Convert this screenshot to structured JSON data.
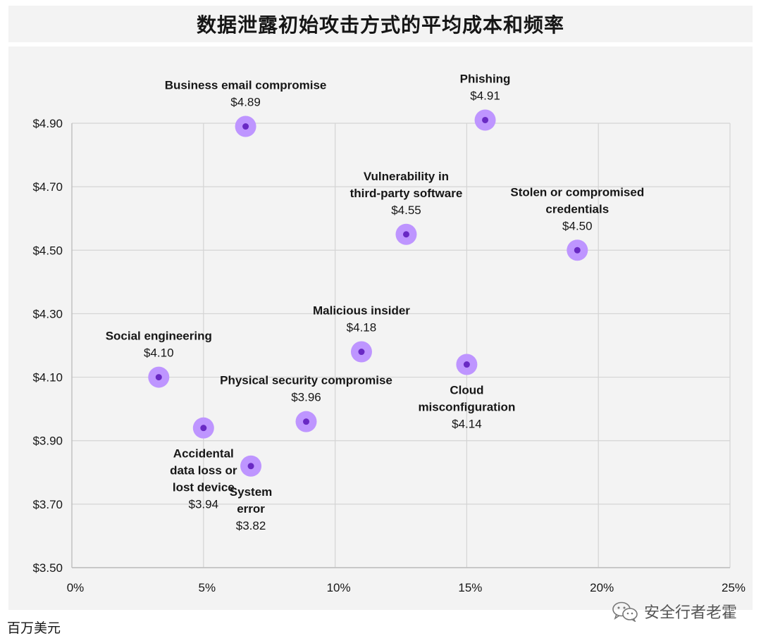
{
  "chart_data": {
    "type": "scatter",
    "title": "数据泄露初始攻击方式的平均成本和频率",
    "unit_note": "百万美元",
    "xlim": [
      0,
      25
    ],
    "ylim": [
      3.5,
      4.9
    ],
    "x_ticks": [
      0,
      5,
      10,
      15,
      20,
      25
    ],
    "x_tick_labels": [
      "0%",
      "5%",
      "10%",
      "15%",
      "20%",
      "25%"
    ],
    "y_ticks": [
      3.5,
      3.7,
      3.9,
      4.1,
      4.3,
      4.5,
      4.7,
      4.9
    ],
    "y_tick_labels": [
      "$3.50",
      "$3.70",
      "$3.90",
      "$4.10",
      "$4.30",
      "$4.50",
      "$4.70",
      "$4.90"
    ],
    "grid": true,
    "marker_color": "#6929c4",
    "halo_color": "#be95ff",
    "points": [
      {
        "name_lines": [
          "Business email compromise"
        ],
        "value_label": "$4.89",
        "x": 6.6,
        "y": 4.89,
        "label_pos": "above"
      },
      {
        "name_lines": [
          "Phishing"
        ],
        "value_label": "$4.91",
        "x": 15.7,
        "y": 4.91,
        "label_pos": "above"
      },
      {
        "name_lines": [
          "Vulnerability in",
          "third-party software"
        ],
        "value_label": "$4.55",
        "x": 12.7,
        "y": 4.55,
        "label_pos": "above"
      },
      {
        "name_lines": [
          "Stolen or compromised",
          "credentials"
        ],
        "value_label": "$4.50",
        "x": 19.2,
        "y": 4.5,
        "label_pos": "above"
      },
      {
        "name_lines": [
          "Malicious insider"
        ],
        "value_label": "$4.18",
        "x": 11.0,
        "y": 4.18,
        "label_pos": "above"
      },
      {
        "name_lines": [
          "Social engineering"
        ],
        "value_label": "$4.10",
        "x": 3.3,
        "y": 4.1,
        "label_pos": "above"
      },
      {
        "name_lines": [
          "Cloud",
          "misconfiguration"
        ],
        "value_label": "$4.14",
        "x": 15.0,
        "y": 4.14,
        "label_pos": "below"
      },
      {
        "name_lines": [
          "Physical security compromise"
        ],
        "value_label": "$3.96",
        "x": 8.9,
        "y": 3.96,
        "label_pos": "above"
      },
      {
        "name_lines": [
          "Accidental",
          "data loss or",
          "lost device"
        ],
        "value_label": "$3.94",
        "x": 5.0,
        "y": 3.94,
        "label_pos": "below"
      },
      {
        "name_lines": [
          "System",
          "error"
        ],
        "value_label": "$3.82",
        "x": 6.8,
        "y": 3.82,
        "label_pos": "below"
      }
    ]
  },
  "watermark": {
    "text": "安全行者老霍",
    "icon": "wechat-icon"
  }
}
